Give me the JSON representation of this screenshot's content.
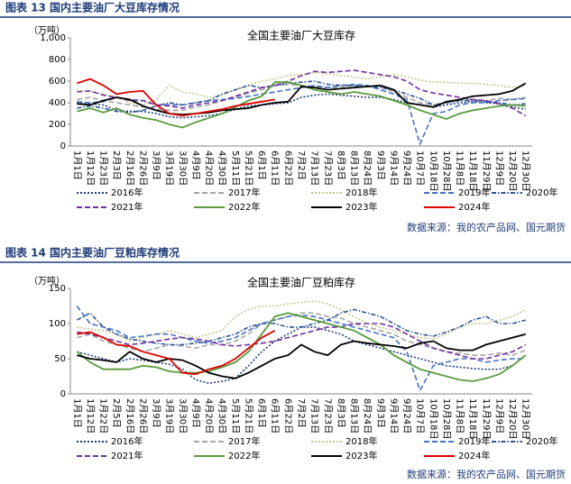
{
  "figures": [
    {
      "caption": "图表 13  国内主要油厂大豆库存情况",
      "source": "数据来源：我的农产品网、国元期货"
    },
    {
      "caption": "图表 14  国内主要油厂豆粕库存情况",
      "source": "数据来源：我的农产品网、国元期货"
    }
  ],
  "chart_data": [
    {
      "type": "line",
      "title": "全国主要油厂大豆库存",
      "ylabel": "（万吨）",
      "categories": [
        "1月1日",
        "1月12日",
        "1月23日",
        "2月3日",
        "2月16日",
        "2月26日",
        "3月9日",
        "3月19日",
        "3月30日",
        "4月9日",
        "4月20日",
        "4月30日",
        "5月11日",
        "5月21日",
        "6月1日",
        "6月11日",
        "6月22日",
        "7月2日",
        "7月13日",
        "7月23日",
        "8月3日",
        "8月13日",
        "8月24日",
        "9月3日",
        "9月14日",
        "9月24日",
        "10月7日",
        "10月18日",
        "10月28日",
        "11月8日",
        "11月18日",
        "11月29日",
        "12月9日",
        "12月20日",
        "12月30日"
      ],
      "ylim": [
        0,
        1000
      ],
      "yticks": [
        0,
        200,
        400,
        600,
        800,
        {
          "value": 1000,
          "label": "1,000"
        }
      ],
      "series": [
        {
          "name": "2016年",
          "color": "#1f3d7a",
          "style": "dotted",
          "values": [
            400,
            390,
            380,
            330,
            320,
            320,
            300,
            270,
            260,
            270,
            280,
            300,
            340,
            370,
            380,
            390,
            400,
            450,
            470,
            480,
            470,
            460,
            450,
            450,
            430,
            400,
            380,
            360,
            380,
            400,
            410,
            400,
            390,
            360,
            340
          ]
        },
        {
          "name": "2017年",
          "color": "#a6a6a6",
          "style": "dashed",
          "values": [
            430,
            450,
            420,
            400,
            380,
            360,
            340,
            330,
            330,
            360,
            380,
            420,
            450,
            490,
            520,
            560,
            570,
            560,
            550,
            540,
            540,
            560,
            560,
            550,
            500,
            450,
            400,
            380,
            400,
            420,
            430,
            420,
            440,
            430,
            450
          ]
        },
        {
          "name": "2018年",
          "color": "#c4c78a",
          "style": "dotted",
          "values": [
            520,
            500,
            480,
            450,
            400,
            380,
            430,
            560,
            500,
            480,
            450,
            470,
            520,
            560,
            600,
            620,
            650,
            660,
            680,
            670,
            650,
            640,
            620,
            640,
            660,
            640,
            610,
            590,
            590,
            580,
            580,
            570,
            560,
            540,
            560
          ]
        },
        {
          "name": "2019年",
          "color": "#4472c4",
          "style": "dashed",
          "values": [
            410,
            400,
            410,
            450,
            430,
            420,
            380,
            380,
            380,
            400,
            420,
            430,
            440,
            460,
            480,
            500,
            520,
            540,
            560,
            540,
            560,
            570,
            560,
            520,
            480,
            430,
            20,
            300,
            320,
            380,
            400,
            400,
            420,
            430,
            440
          ]
        },
        {
          "name": "2020年",
          "color": "#2e5597",
          "style": "dashdot",
          "values": [
            350,
            370,
            350,
            320,
            310,
            330,
            370,
            400,
            380,
            400,
            420,
            480,
            520,
            560,
            540,
            560,
            580,
            590,
            600,
            570,
            560,
            560,
            550,
            540,
            520,
            480,
            440,
            380,
            400,
            420,
            420,
            410,
            400,
            380,
            390
          ]
        },
        {
          "name": "2021年",
          "color": "#7030a0",
          "style": "dashed",
          "values": [
            500,
            510,
            470,
            450,
            420,
            420,
            380,
            370,
            350,
            380,
            400,
            420,
            460,
            500,
            540,
            560,
            600,
            650,
            690,
            680,
            690,
            700,
            680,
            660,
            640,
            600,
            520,
            490,
            470,
            450,
            430,
            420,
            390,
            350,
            280
          ]
        },
        {
          "name": "2022年",
          "color": "#5a9a3c",
          "style": "solid",
          "values": [
            320,
            350,
            310,
            350,
            290,
            260,
            240,
            200,
            170,
            220,
            260,
            300,
            360,
            420,
            460,
            590,
            590,
            560,
            520,
            500,
            480,
            500,
            480,
            460,
            420,
            380,
            330,
            290,
            250,
            300,
            330,
            350,
            370,
            380,
            370
          ]
        },
        {
          "name": "2023年",
          "color": "#000000",
          "style": "solid",
          "values": [
            390,
            380,
            420,
            450,
            430,
            370,
            330,
            300,
            290,
            300,
            310,
            330,
            340,
            350,
            380,
            400,
            410,
            550,
            540,
            520,
            530,
            540,
            550,
            560,
            520,
            400,
            380,
            360,
            410,
            430,
            460,
            470,
            480,
            510,
            580
          ]
        },
        {
          "name": "2024年",
          "color": "#e00000",
          "style": "solid",
          "values": [
            580,
            620,
            560,
            480,
            500,
            510,
            380,
            300,
            280,
            300,
            320,
            340,
            370,
            390,
            410,
            430,
            null,
            null,
            null,
            null,
            null,
            null,
            null,
            null,
            null,
            null,
            null,
            null,
            null,
            null,
            null,
            null,
            null,
            null,
            null
          ]
        }
      ]
    },
    {
      "type": "line",
      "title": "全国主要油厂豆粕库存",
      "ylabel": "（万吨）",
      "categories": [
        "1月1日",
        "1月12日",
        "1月22日",
        "2月5日",
        "2月16日",
        "2月26日",
        "3月9日",
        "3月19日",
        "3月30日",
        "4月9日",
        "4月20日",
        "4月30日",
        "5月11日",
        "5月21日",
        "6月1日",
        "6月11日",
        "6月22日",
        "7月2日",
        "7月13日",
        "7月23日",
        "8月3日",
        "8月13日",
        "8月24日",
        "9月3日",
        "9月14日",
        "9月24日",
        "10月7日",
        "10月18日",
        "10月28日",
        "11月8日",
        "11月18日",
        "11月29日",
        "12月9日",
        "12月20日",
        "12月30日"
      ],
      "ylim": [
        0,
        150
      ],
      "yticks": [
        0,
        50,
        100,
        150
      ],
      "series": [
        {
          "name": "2016年",
          "color": "#1f3d7a",
          "style": "dotted",
          "values": [
            60,
            55,
            50,
            45,
            50,
            48,
            45,
            42,
            35,
            20,
            15,
            18,
            22,
            40,
            60,
            75,
            85,
            95,
            95,
            90,
            85,
            75,
            70,
            65,
            60,
            55,
            50,
            45,
            40,
            38,
            36,
            35,
            35,
            40,
            55
          ]
        },
        {
          "name": "2017年",
          "color": "#a6a6a6",
          "style": "dashed",
          "values": [
            80,
            85,
            75,
            70,
            65,
            60,
            65,
            70,
            68,
            65,
            70,
            70,
            75,
            85,
            100,
            105,
            110,
            115,
            115,
            110,
            108,
            100,
            95,
            90,
            85,
            75,
            70,
            65,
            60,
            58,
            55,
            55,
            58,
            55,
            62
          ]
        },
        {
          "name": "2018年",
          "color": "#c4c78a",
          "style": "dotted",
          "values": [
            95,
            92,
            90,
            85,
            75,
            80,
            85,
            90,
            85,
            80,
            85,
            90,
            110,
            120,
            125,
            125,
            128,
            130,
            132,
            128,
            120,
            110,
            100,
            95,
            90,
            85,
            80,
            78,
            85,
            95,
            100,
            100,
            105,
            110,
            120
          ]
        },
        {
          "name": "2019年",
          "color": "#4472c4",
          "style": "dashed",
          "values": [
            125,
            100,
            95,
            90,
            80,
            82,
            85,
            85,
            80,
            75,
            72,
            75,
            80,
            90,
            100,
            105,
            110,
            112,
            110,
            105,
            100,
            95,
            90,
            85,
            80,
            60,
            5,
            40,
            45,
            50,
            50,
            45,
            48,
            50,
            50
          ]
        },
        {
          "name": "2020年",
          "color": "#2e5597",
          "style": "dashdot",
          "values": [
            105,
            115,
            95,
            85,
            78,
            75,
            72,
            70,
            70,
            72,
            75,
            80,
            85,
            95,
            100,
            100,
            95,
            95,
            100,
            105,
            115,
            120,
            115,
            110,
            100,
            90,
            85,
            82,
            88,
            95,
            105,
            110,
            100,
            100,
            105
          ]
        },
        {
          "name": "2021年",
          "color": "#7030a0",
          "style": "dashed",
          "values": [
            88,
            85,
            80,
            75,
            70,
            72,
            75,
            78,
            80,
            78,
            75,
            70,
            68,
            70,
            72,
            75,
            80,
            85,
            90,
            95,
            95,
            100,
            100,
            100,
            95,
            85,
            75,
            65,
            60,
            55,
            50,
            50,
            55,
            60,
            70
          ]
        },
        {
          "name": "2022年",
          "color": "#5a9a3c",
          "style": "solid",
          "values": [
            60,
            45,
            35,
            35,
            35,
            40,
            38,
            32,
            30,
            30,
            32,
            38,
            45,
            60,
            85,
            110,
            115,
            110,
            105,
            100,
            95,
            90,
            80,
            70,
            55,
            45,
            35,
            30,
            25,
            20,
            18,
            22,
            28,
            40,
            55
          ]
        },
        {
          "name": "2023年",
          "color": "#000000",
          "style": "solid",
          "values": [
            55,
            50,
            48,
            45,
            60,
            50,
            45,
            50,
            48,
            40,
            30,
            25,
            22,
            30,
            40,
            50,
            55,
            70,
            60,
            55,
            70,
            75,
            72,
            70,
            68,
            65,
            72,
            75,
            65,
            62,
            62,
            70,
            75,
            80,
            85
          ]
        },
        {
          "name": "2024年",
          "color": "#e00000",
          "style": "solid",
          "values": [
            85,
            88,
            80,
            70,
            68,
            60,
            55,
            50,
            30,
            28,
            35,
            40,
            50,
            65,
            80,
            90,
            null,
            null,
            null,
            null,
            null,
            null,
            null,
            null,
            null,
            null,
            null,
            null,
            null,
            null,
            null,
            null,
            null,
            null,
            null
          ]
        }
      ]
    }
  ]
}
